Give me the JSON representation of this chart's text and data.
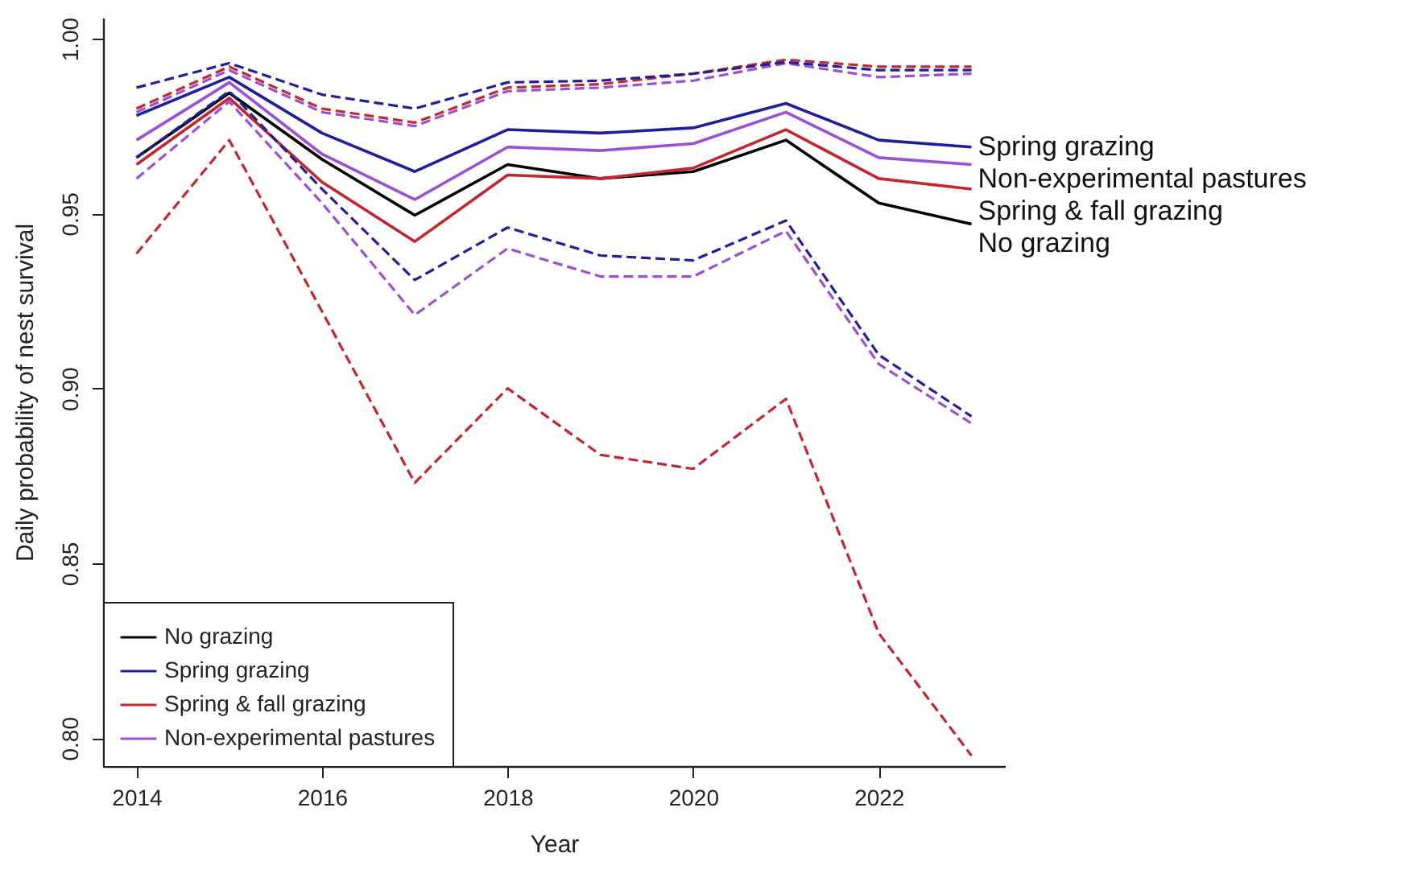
{
  "chart_data": {
    "type": "line",
    "xlabel": "Year",
    "ylabel": "Daily probability of nest survival",
    "x": [
      2014,
      2015,
      2016,
      2017,
      2018,
      2019,
      2020,
      2021,
      2022,
      2023
    ],
    "xlim": [
      2013.64,
      2023.36
    ],
    "xticks": [
      2014,
      2016,
      2018,
      2020,
      2022
    ],
    "ylim": [
      0.792,
      1.006
    ],
    "yticks": [
      {
        "value": 0.8,
        "label": "0.80"
      },
      0.85,
      {
        "value": 0.9,
        "label": "0.90"
      },
      0.95,
      {
        "value": 1.0,
        "label": "1.00"
      }
    ],
    "grid": false,
    "legend": "bottom left",
    "line_style": "solid",
    "marker": "none",
    "series": [
      {
        "name": "No grazing",
        "color": "#000000",
        "values": [
          0.966,
          0.9845,
          0.9655,
          0.9495,
          0.964,
          0.96,
          0.962,
          0.971,
          0.953,
          0.947
        ]
      },
      {
        "name": "Spring grazing",
        "color": "#1f1f9e",
        "values": [
          0.978,
          0.989,
          0.973,
          0.962,
          0.974,
          0.973,
          0.9745,
          0.9815,
          0.971,
          0.969
        ]
      },
      {
        "name": "Spring & fall grazing",
        "color": "#c1272d",
        "values": [
          0.964,
          0.983,
          0.959,
          0.942,
          0.961,
          0.96,
          0.963,
          0.974,
          0.96,
          0.957
        ]
      },
      {
        "name": "Non-experimental pastures",
        "color": "#9b4fd6",
        "values": [
          0.971,
          0.9875,
          0.967,
          0.954,
          0.969,
          0.968,
          0.97,
          0.979,
          0.966,
          0.964
        ]
      },
      {
        "color": "#c1272d",
        "line_style": "dashed",
        "values": [
          0.98,
          0.992,
          0.98,
          0.976,
          0.986,
          0.987,
          0.99,
          0.994,
          0.992,
          0.992
        ]
      },
      {
        "color": "#9b4fd6",
        "line_style": "dashed",
        "values": [
          0.979,
          0.991,
          0.979,
          0.975,
          0.985,
          0.986,
          0.988,
          0.993,
          0.989,
          0.99
        ]
      },
      {
        "color": "#1f1f9e",
        "line_style": "dashed",
        "values": [
          0.986,
          0.993,
          0.984,
          0.98,
          0.9875,
          0.988,
          0.99,
          0.9933,
          0.991,
          0.991
        ]
      },
      {
        "color": "#9b4fd6",
        "line_style": "dashed",
        "values": [
          0.96,
          0.982,
          0.953,
          0.921,
          0.94,
          0.932,
          0.932,
          0.945,
          0.907,
          0.89
        ]
      },
      {
        "color": "#1f1f9e",
        "line_style": "dashed",
        "values": [
          0.966,
          0.985,
          0.957,
          0.931,
          0.946,
          0.938,
          0.9366,
          0.948,
          0.9096,
          0.892
        ]
      },
      {
        "color": "#c1272d",
        "line_style": "dashed",
        "values": [
          0.9385,
          0.971,
          0.922,
          0.873,
          0.9,
          0.881,
          0.877,
          0.897,
          0.83,
          0.795
        ]
      }
    ]
  }
}
